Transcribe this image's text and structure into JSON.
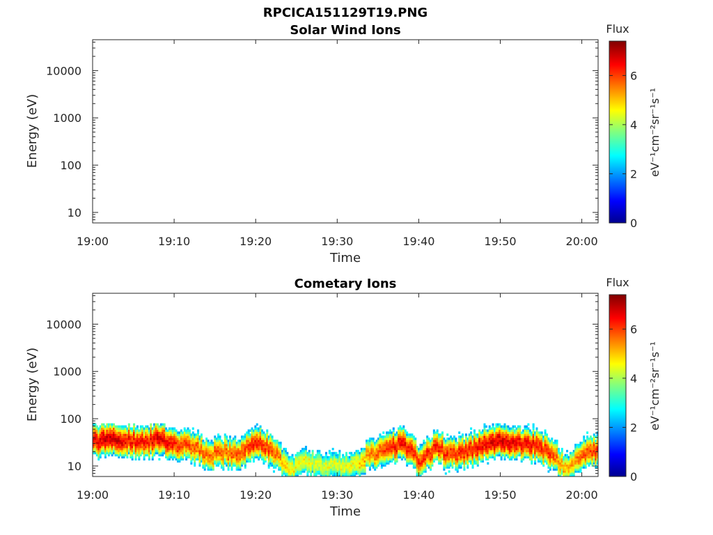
{
  "figure": {
    "title": "RPCICA151129T19.PNG"
  },
  "colorbar": {
    "label": "Flux",
    "units": "eV⁻¹cm⁻²sr⁻¹s⁻¹",
    "range": [
      0,
      7.4
    ],
    "ticks": [
      "0",
      "2",
      "4",
      "6"
    ],
    "colormap": "jet"
  },
  "chart_data": [
    {
      "type": "heatmap",
      "title": "Solar Wind Ions",
      "xlabel": "Time",
      "ylabel": "Energy (eV)",
      "xlim": [
        "19:00",
        "20:02"
      ],
      "ylim": [
        6,
        45000
      ],
      "yscale": "log",
      "xticks": [
        "19:00",
        "19:10",
        "19:20",
        "19:30",
        "19:40",
        "19:50",
        "20:00"
      ],
      "yticks": [
        "10",
        "100",
        "1000",
        "10000"
      ],
      "grid": false,
      "data": "empty"
    },
    {
      "type": "heatmap",
      "title": "Cometary Ions",
      "xlabel": "Time",
      "ylabel": "Energy (eV)",
      "xlim": [
        "19:00",
        "20:02"
      ],
      "ylim": [
        6,
        45000
      ],
      "yscale": "log",
      "xticks": [
        "19:00",
        "19:10",
        "19:20",
        "19:30",
        "19:40",
        "19:50",
        "20:00"
      ],
      "yticks": [
        "10",
        "100",
        "1000",
        "10000"
      ],
      "grid": false,
      "peak_energy_track": {
        "time_min": [
          0,
          2,
          4,
          6,
          8,
          10,
          12,
          14,
          16,
          18,
          20,
          22,
          24,
          26,
          28,
          30,
          32,
          34,
          36,
          38,
          40,
          42,
          44,
          46,
          48,
          50,
          52,
          54,
          56,
          58,
          60,
          62
        ],
        "energy_eV": [
          35,
          38,
          36,
          32,
          38,
          30,
          28,
          18,
          20,
          18,
          35,
          20,
          8,
          12,
          10,
          10,
          10,
          18,
          22,
          30,
          12,
          25,
          18,
          20,
          30,
          35,
          30,
          28,
          20,
          8,
          18,
          22
        ],
        "flux": [
          6.5,
          6.8,
          6.5,
          6.3,
          6.7,
          6.2,
          5.8,
          5.7,
          5.8,
          5.9,
          6.3,
          5.9,
          4.8,
          4.6,
          4.5,
          4.4,
          4.6,
          5.6,
          6.2,
          6.5,
          6.0,
          6.3,
          6.1,
          6.3,
          6.6,
          6.7,
          6.5,
          6.4,
          6.1,
          5.0,
          5.8,
          6.2
        ]
      },
      "max_energy_eV": 80
    }
  ]
}
